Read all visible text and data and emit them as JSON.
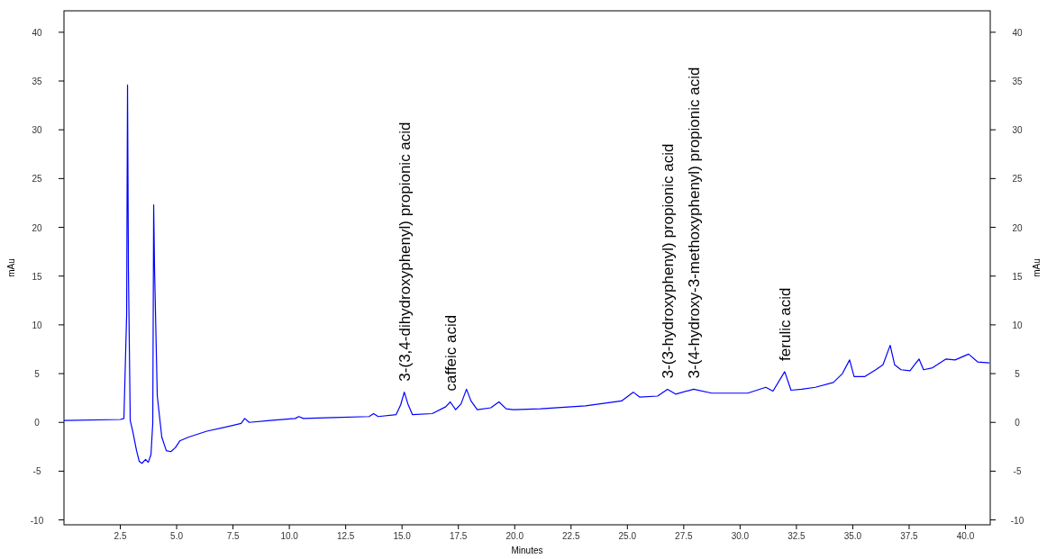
{
  "chart_data": {
    "type": "line",
    "xlabel": "Minutes",
    "ylabel": "mAu",
    "y2label": "mAu",
    "xlim": [
      0,
      41.1
    ],
    "ylim": [
      -10.5,
      42.2
    ],
    "y2lim": [
      -10.5,
      42.2
    ],
    "xticks": [
      {
        "value": 2.5,
        "label": "2.5"
      },
      {
        "value": 5,
        "label": "5.0"
      },
      {
        "value": 7.5,
        "label": "7.5"
      },
      {
        "value": 10,
        "label": "10.0"
      },
      {
        "value": 12.5,
        "label": "12.5"
      },
      {
        "value": 15,
        "label": "15.0"
      },
      {
        "value": 17.5,
        "label": "17.5"
      },
      {
        "value": 20,
        "label": "20.0"
      },
      {
        "value": 22.5,
        "label": "22.5"
      },
      {
        "value": 25,
        "label": "25.0"
      },
      {
        "value": 27.5,
        "label": "27.5"
      },
      {
        "value": 30,
        "label": "30.0"
      },
      {
        "value": 32.5,
        "label": "32.5"
      },
      {
        "value": 35,
        "label": "35.0"
      },
      {
        "value": 37.5,
        "label": "37.5"
      },
      {
        "value": 40,
        "label": "40.0"
      }
    ],
    "yticks": [
      -10,
      -5,
      0,
      5,
      10,
      15,
      20,
      25,
      30,
      35,
      40
    ],
    "y2ticks": [
      -10,
      -5,
      0,
      5,
      10,
      15,
      20,
      25,
      30,
      35,
      40
    ],
    "grid": false,
    "marker": "none",
    "line_style": "solid",
    "series": [
      {
        "color": "#0000ff",
        "x": [
          0,
          2.5,
          2.66,
          2.78,
          2.82,
          2.86,
          2.94,
          3.06,
          3.22,
          3.34,
          3.46,
          3.62,
          3.74,
          3.86,
          3.94,
          3.98,
          4.02,
          4.14,
          4.34,
          4.54,
          4.74,
          4.94,
          5.14,
          5.54,
          6.34,
          7.14,
          7.86,
          8.02,
          8.22,
          9.14,
          10.26,
          10.42,
          10.62,
          11.94,
          13.54,
          13.74,
          13.94,
          14.74,
          14.94,
          15.1,
          15.26,
          15.46,
          16.34,
          16.94,
          17.14,
          17.38,
          17.62,
          17.86,
          18.06,
          18.34,
          18.94,
          19.3,
          19.62,
          19.94,
          21.14,
          23.14,
          24.74,
          25.26,
          25.54,
          26.34,
          26.78,
          27.14,
          27.94,
          28.74,
          30.34,
          31.14,
          31.46,
          31.98,
          32.26,
          32.74,
          33.34,
          34.14,
          34.54,
          34.86,
          35.06,
          35.54,
          36.02,
          36.34,
          36.66,
          36.86,
          37.14,
          37.54,
          37.94,
          38.14,
          38.54,
          39.14,
          39.54,
          40.14,
          40.54,
          41.06
        ],
        "values": [
          0.2,
          0.3,
          0.4,
          11,
          34.6,
          15.6,
          0.2,
          -1,
          -2.9,
          -4.0,
          -4.2,
          -3.8,
          -4.1,
          -3.3,
          -0.1,
          22.3,
          15.6,
          2.7,
          -1.5,
          -2.9,
          -3.0,
          -2.6,
          -1.9,
          -1.5,
          -0.9,
          -0.5,
          -0.1,
          0.4,
          0,
          0.2,
          0.4,
          0.6,
          0.4,
          0.5,
          0.6,
          0.9,
          0.6,
          0.8,
          1.8,
          3.1,
          1.9,
          0.8,
          0.9,
          1.6,
          2.1,
          1.3,
          1.9,
          3.4,
          2.2,
          1.3,
          1.5,
          2.1,
          1.4,
          1.3,
          1.4,
          1.7,
          2.2,
          3.1,
          2.6,
          2.7,
          3.4,
          2.9,
          3.4,
          3.0,
          3.0,
          3.6,
          3.2,
          5.2,
          3.3,
          3.4,
          3.6,
          4.1,
          5.0,
          6.4,
          4.7,
          4.7,
          5.4,
          5.9,
          7.9,
          5.9,
          5.4,
          5.3,
          6.5,
          5.4,
          5.6,
          6.5,
          6.4,
          7.0,
          6.2,
          6.1
        ]
      }
    ],
    "annotations": [
      {
        "text": "3-(3,4-dihydroxyphenyl) propionic acid",
        "x": 15.1,
        "y": 3.1
      },
      {
        "text": "caffeic acid",
        "x": 17.14,
        "y": 2.1
      },
      {
        "text": "3-(3-hydroxyphenyl) propionic acid",
        "x": 26.78,
        "y": 3.4
      },
      {
        "text": "3-(4-hydroxy-3-methoxyphenyl) propionic acid",
        "x": 27.94,
        "y": 3.4
      },
      {
        "text": "ferulic acid",
        "x": 31.98,
        "y": 5.2
      }
    ]
  }
}
